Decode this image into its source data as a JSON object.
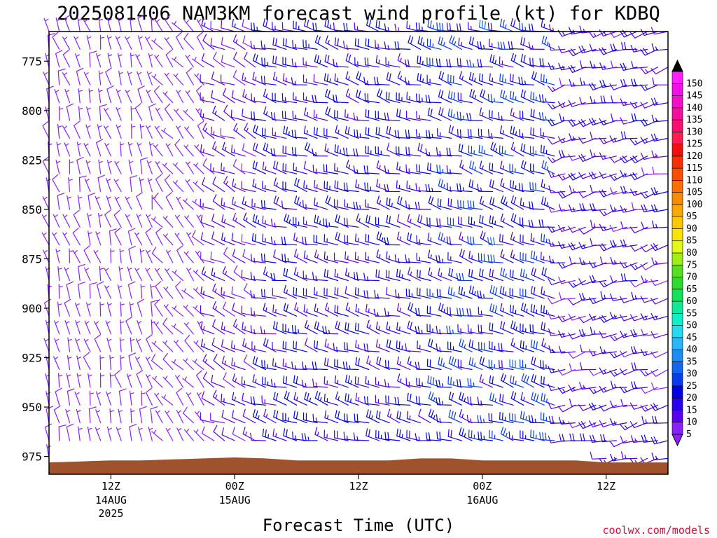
{
  "chart_data": {
    "type": "wind-barb-profile",
    "title": "2025081406 NAM3KM forecast wind profile (kt) for KDBQ",
    "xlabel": "Forecast Time (UTC)",
    "ylabel": "",
    "credit": "coolwx.com/models",
    "y_axis": {
      "units": "mb",
      "inverted": true,
      "ylim": [
        984,
        760
      ],
      "ticks": [
        775,
        800,
        825,
        850,
        875,
        900,
        925,
        950,
        975
      ]
    },
    "x_axis": {
      "units": "forecast hour",
      "xlim": [
        0,
        60
      ],
      "ticks": [
        {
          "hour": 6,
          "label": "12Z",
          "date": "14AUG",
          "year": "2025"
        },
        {
          "hour": 18,
          "label": "00Z",
          "date": "15AUG",
          "year": ""
        },
        {
          "hour": 30,
          "label": "12Z",
          "date": "",
          "year": ""
        },
        {
          "hour": 42,
          "label": "00Z",
          "date": "16AUG",
          "year": ""
        },
        {
          "hour": 54,
          "label": "12Z",
          "date": "",
          "year": ""
        }
      ]
    },
    "colorbar": {
      "units": "kt",
      "levels": [
        5,
        10,
        15,
        20,
        25,
        30,
        35,
        40,
        45,
        50,
        55,
        60,
        65,
        70,
        75,
        80,
        85,
        90,
        95,
        100,
        105,
        110,
        115,
        120,
        125,
        130,
        135,
        140,
        145,
        150
      ],
      "colors": [
        "#8a22ff",
        "#5a00f0",
        "#2b00e8",
        "#0000e0",
        "#0a3be8",
        "#1465ef",
        "#1f8cf5",
        "#2ab6f8",
        "#28d9f0",
        "#10f0c8",
        "#10e89a",
        "#18e05a",
        "#30d830",
        "#58e020",
        "#a0ee18",
        "#e4f818",
        "#f8e400",
        "#f8c800",
        "#f8a800",
        "#f88c00",
        "#f87000",
        "#f85000",
        "#f83000",
        "#f01010",
        "#ff1f4a",
        "#f81070",
        "#f0109c",
        "#f010c8",
        "#f010e8",
        "#ff20ff"
      ]
    },
    "terrain_color": "#a0522d",
    "wind": {
      "description": "hourly barbs at 25 pressure levels (760-976 mb every 9 mb); speeds in kt, direction in degrees FROM",
      "hours": [
        0,
        60,
        1
      ],
      "levels_mb": [
        760,
        976,
        9
      ],
      "regimes": [
        {
          "hours": [
            0,
            11
          ],
          "dir_deg": 345,
          "speed_kt": [
            3,
            9
          ]
        },
        {
          "hours": [
            11,
            16
          ],
          "dir_deg": 320,
          "speed_kt": [
            3,
            9
          ]
        },
        {
          "hours": [
            16,
            21
          ],
          "dir_deg": 295,
          "speed_kt": [
            8,
            16
          ]
        },
        {
          "hours": [
            21,
            38
          ],
          "dir_deg": 285,
          "speed_kt": [
            12,
            24
          ]
        },
        {
          "hours": [
            38,
            50
          ],
          "dir_deg": 285,
          "speed_kt": [
            14,
            30
          ]
        },
        {
          "hours": [
            50,
            60
          ],
          "dir_deg": 255,
          "speed_kt": [
            8,
            20
          ]
        }
      ]
    },
    "surface_pressure_mb": [
      [
        0,
        978
      ],
      [
        3,
        977.5
      ],
      [
        6,
        977
      ],
      [
        9,
        977
      ],
      [
        12,
        976.5
      ],
      [
        15,
        976
      ],
      [
        18,
        975.5
      ],
      [
        21,
        976
      ],
      [
        24,
        977
      ],
      [
        27,
        977
      ],
      [
        30,
        977
      ],
      [
        33,
        977
      ],
      [
        36,
        976
      ],
      [
        39,
        976
      ],
      [
        42,
        977
      ],
      [
        45,
        977
      ],
      [
        48,
        977
      ],
      [
        51,
        977
      ],
      [
        54,
        978
      ],
      [
        57,
        978
      ],
      [
        60,
        978
      ]
    ]
  }
}
